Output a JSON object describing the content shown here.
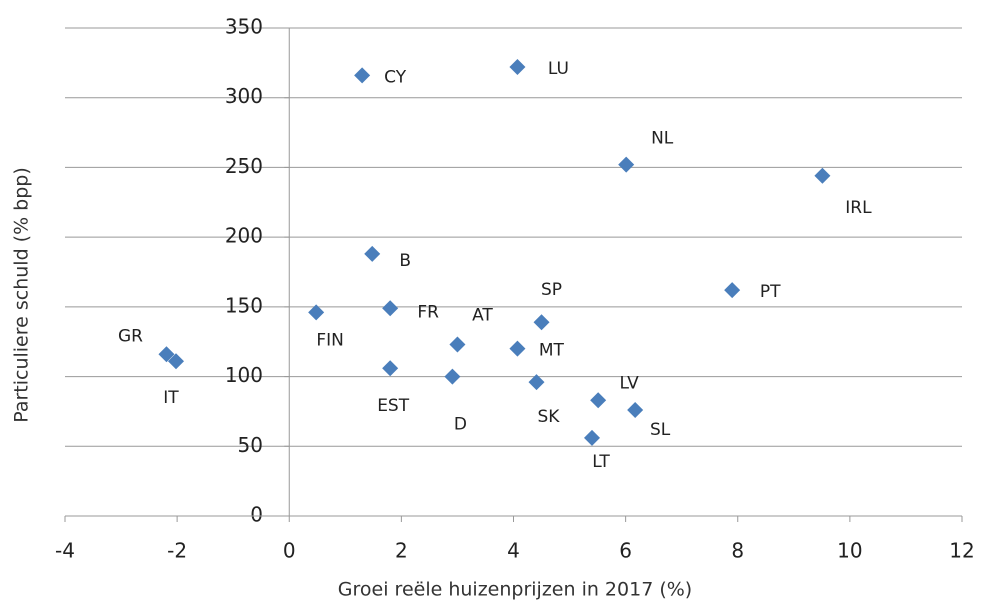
{
  "chart_data": {
    "type": "scatter",
    "x_label": "Groei reële huizenprijzen  in 2017 (%)",
    "y_label": "Particuliere schuld (% bpp)",
    "labels": [
      "CY",
      "LU",
      "NL",
      "IRL",
      "B",
      "PT",
      "FIN",
      "FR",
      "SP",
      "AT",
      "MT",
      "GR",
      "IT",
      "EST",
      "D",
      "SK",
      "LV",
      "SL",
      "LT"
    ],
    "x": [
      1.3,
      4.07,
      6.01,
      9.51,
      1.48,
      7.9,
      0.48,
      1.8,
      4.5,
      3.0,
      4.07,
      -2.19,
      -2.02,
      1.8,
      2.91,
      4.41,
      5.51,
      6.17,
      5.4
    ],
    "y": [
      316,
      322,
      252,
      244,
      188,
      162,
      146,
      149,
      139,
      123,
      120,
      116,
      111,
      106,
      100,
      96,
      83,
      76,
      56
    ],
    "color": "#4a7ebb",
    "xlim": [
      -4,
      12
    ],
    "xticks": [
      -4,
      -2,
      0,
      2,
      4,
      6,
      8,
      10,
      12
    ],
    "ylim": [
      0,
      350
    ],
    "yticks": [
      0,
      50,
      100,
      150,
      200,
      250,
      300,
      350
    ],
    "grid": true
  }
}
